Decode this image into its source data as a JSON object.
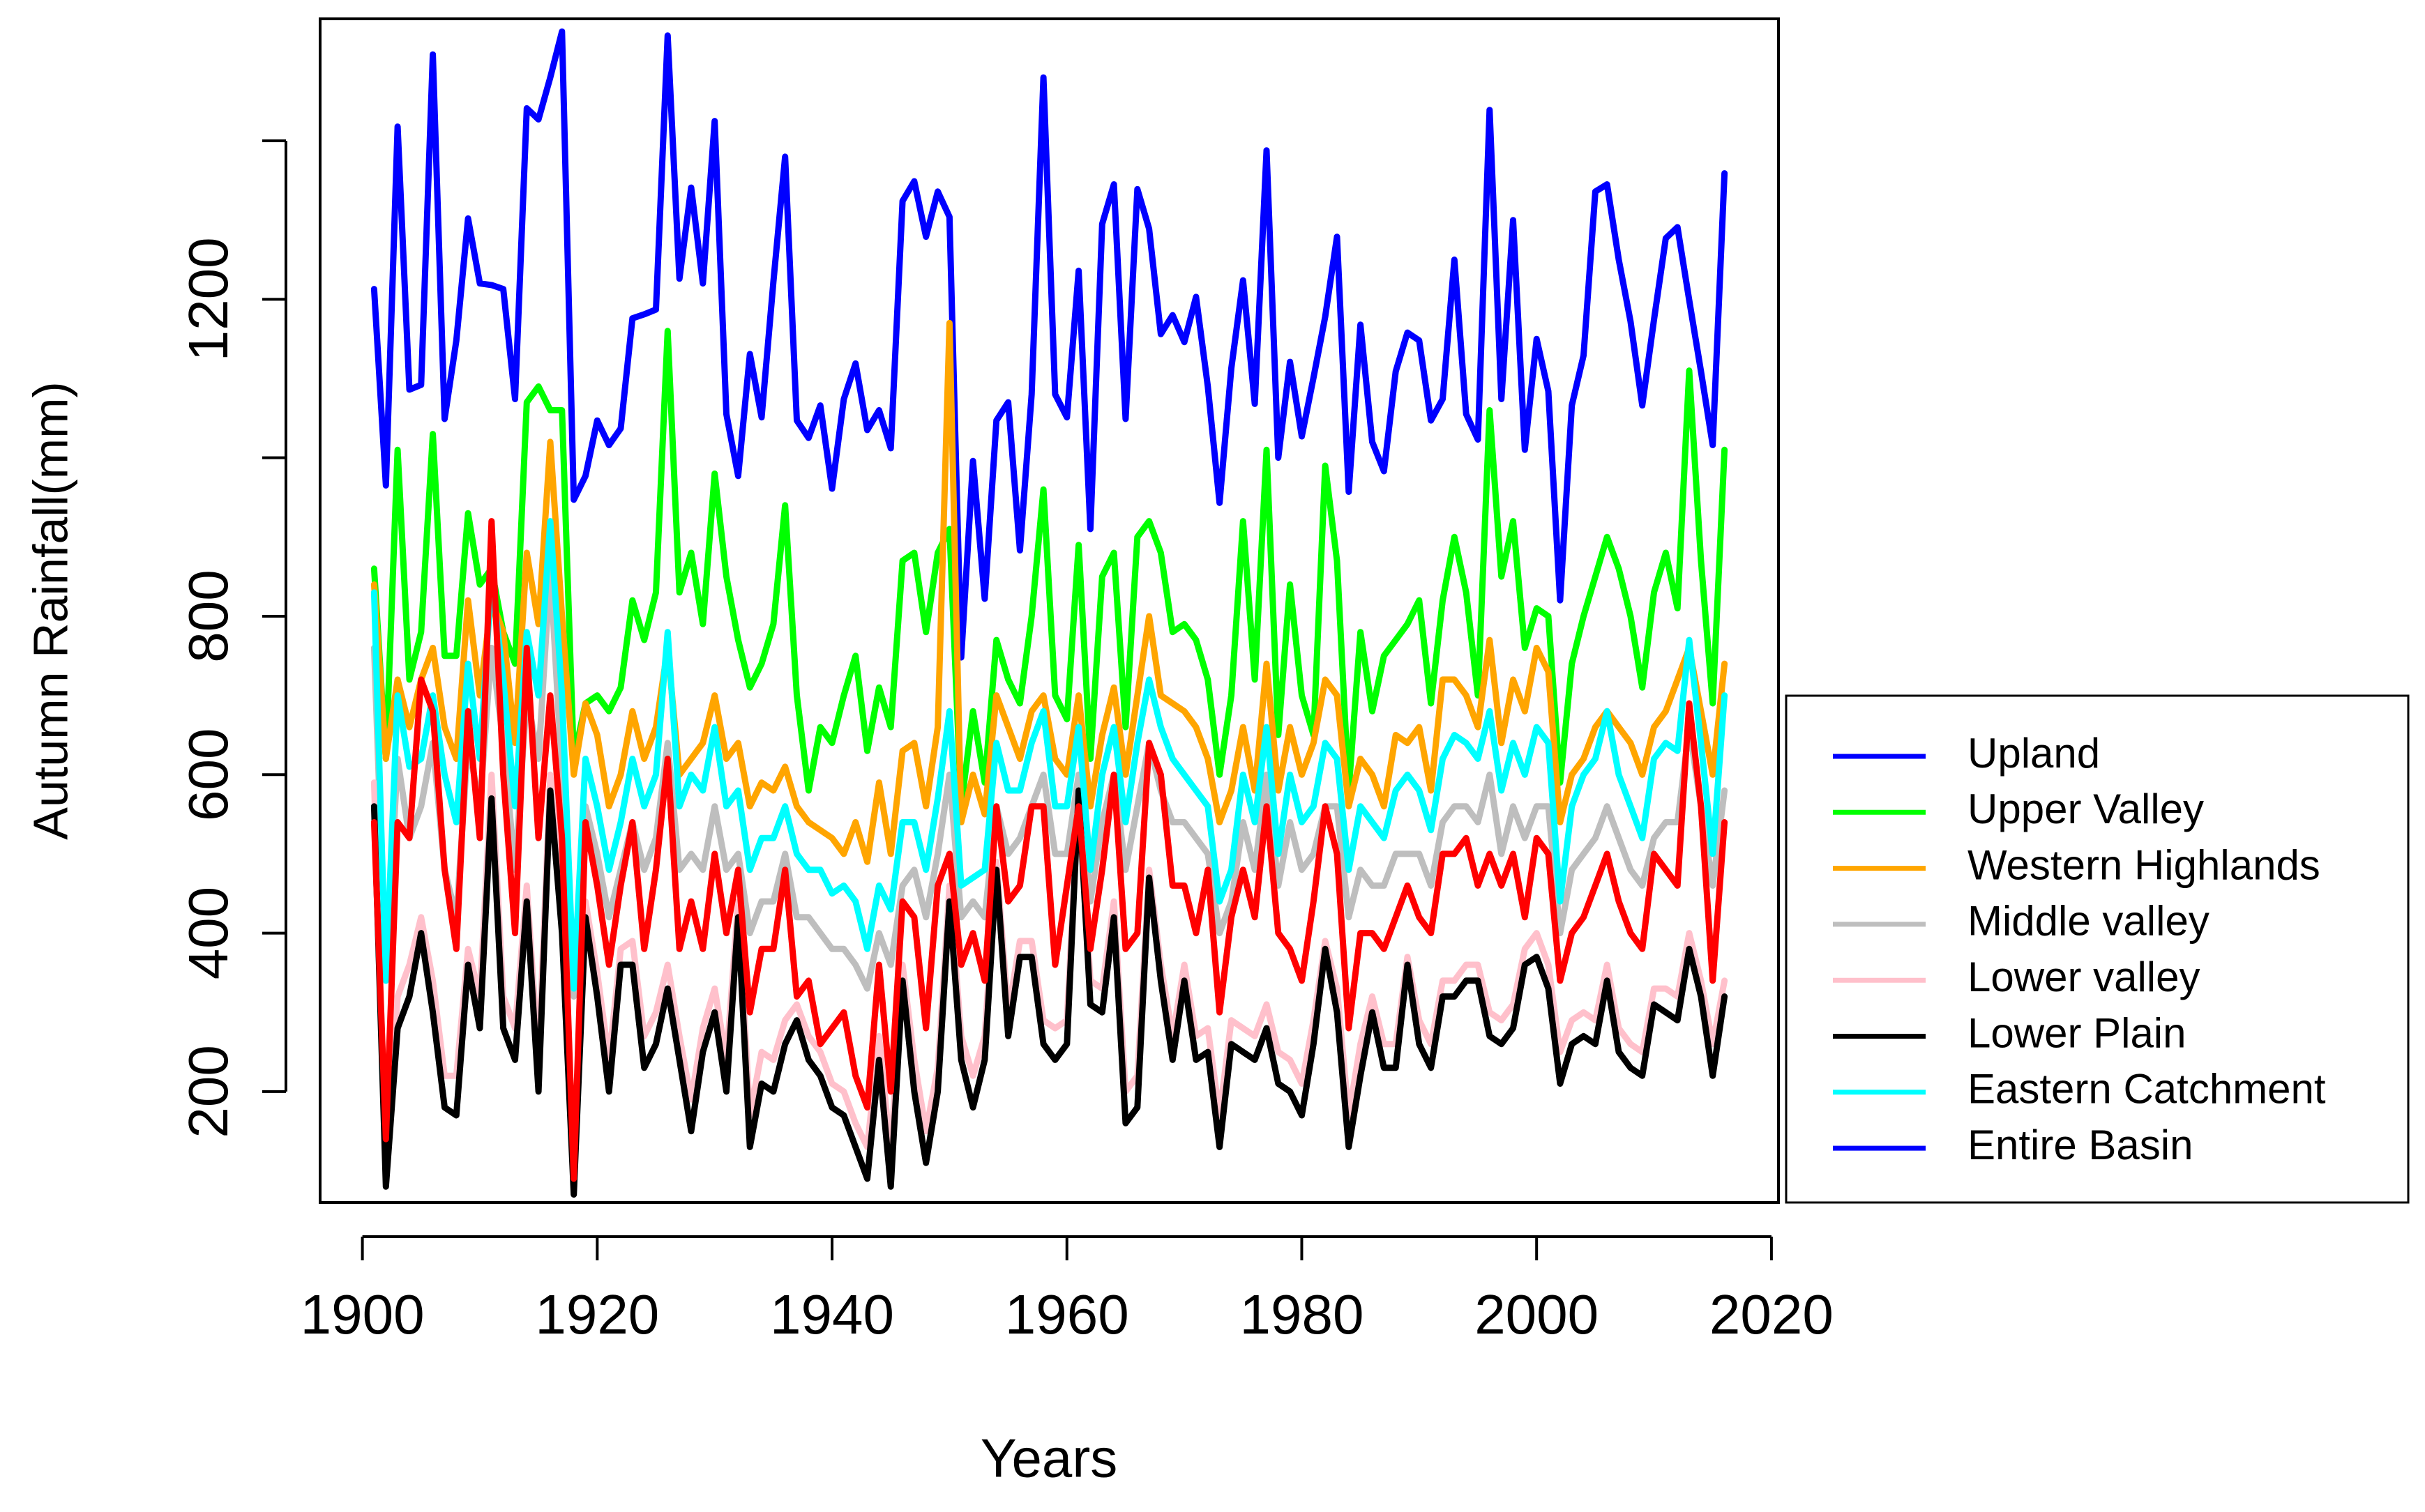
{
  "chart_data": {
    "type": "line",
    "xlabel": "Years",
    "ylabel": "Autumn Rainfall(mm)",
    "xlim": [
      1896.4,
      2020.6
    ],
    "ylim": [
      60,
      1554
    ],
    "xticks": [
      1900,
      1920,
      1940,
      1960,
      1980,
      2000,
      2020
    ],
    "yticks": [
      200,
      400,
      600,
      800,
      1200
    ],
    "yticks_unlabeled": [
      1000,
      1400
    ],
    "legend": "lower right outside",
    "x": [
      1901,
      1902,
      1903,
      1904,
      1905,
      1906,
      1907,
      1908,
      1909,
      1910,
      1911,
      1912,
      1913,
      1914,
      1915,
      1916,
      1917,
      1918,
      1919,
      1920,
      1921,
      1922,
      1923,
      1924,
      1925,
      1926,
      1927,
      1928,
      1929,
      1930,
      1931,
      1932,
      1933,
      1934,
      1935,
      1936,
      1937,
      1938,
      1939,
      1940,
      1941,
      1942,
      1943,
      1944,
      1945,
      1946,
      1947,
      1948,
      1949,
      1950,
      1951,
      1952,
      1953,
      1954,
      1955,
      1956,
      1957,
      1958,
      1959,
      1960,
      1961,
      1962,
      1963,
      1964,
      1965,
      1966,
      1967,
      1968,
      1969,
      1970,
      1971,
      1972,
      1973,
      1974,
      1975,
      1976,
      1977,
      1978,
      1979,
      1980,
      1981,
      1982,
      1983,
      1984,
      1985,
      1986,
      1987,
      1988,
      1989,
      1990,
      1991,
      1992,
      1993,
      1994,
      1995,
      1996,
      1997,
      1998,
      1999,
      2000,
      2001,
      2002,
      2003,
      2004,
      2005,
      2006,
      2007,
      2008,
      2009,
      2010,
      2011,
      2012,
      2013,
      2014,
      2015,
      2016
    ],
    "series": [
      {
        "name": "Upland",
        "color": "#0000ff",
        "values": [
          1213,
          965,
          1418,
          1086,
          1092,
          1509,
          1049,
          1148,
          1302,
          1220,
          1218,
          1213,
          1074,
          1441,
          1427,
          1480,
          1538,
          947,
          977,
          1047,
          1016,
          1037,
          1176,
          1181,
          1187,
          1533,
          1226,
          1341,
          1220,
          1425,
          1055,
          977,
          1131,
          1051,
          1222,
          1380,
          1047,
          1025,
          1066,
          961,
          1074,
          1119,
          1035,
          1060,
          1012,
          1324,
          1349,
          1279,
          1336,
          1304,
          748,
          996,
          822,
          1047,
          1070,
          883,
          1080,
          1480,
          1080,
          1051,
          1236,
          910,
          1295,
          1345,
          1049,
          1339,
          1289,
          1156,
          1180,
          1146,
          1203,
          1090,
          943,
          1113,
          1224,
          1068,
          1388,
          1000,
          1121,
          1027,
          1101,
          1178,
          1279,
          957,
          1168,
          1020,
          983,
          1109,
          1158,
          1148,
          1047,
          1074,
          1250,
          1055,
          1023,
          1439,
          1074,
          1300,
          1010,
          1150,
          1084,
          820,
          1066,
          1129,
          1336,
          1345,
          1250,
          1172,
          1066,
          1174,
          1277,
          1291,
          1199,
          1109,
          1016,
          1359
        ]
      },
      {
        "name": "Upper Valley",
        "color": "#00ff00",
        "values": [
          860,
          620,
          1010,
          720,
          780,
          1030,
          750,
          750,
          930,
          840,
          860,
          780,
          740,
          1070,
          1090,
          1060,
          1060,
          620,
          690,
          700,
          680,
          710,
          820,
          770,
          830,
          1160,
          830,
          880,
          790,
          980,
          850,
          770,
          710,
          740,
          790,
          940,
          700,
          580,
          660,
          640,
          700,
          750,
          630,
          710,
          660,
          870,
          880,
          780,
          880,
          910,
          560,
          680,
          590,
          770,
          720,
          690,
          800,
          960,
          700,
          670,
          890,
          620,
          850,
          880,
          660,
          900,
          920,
          880,
          780,
          790,
          770,
          720,
          600,
          700,
          920,
          720,
          1010,
          650,
          840,
          700,
          650,
          990,
          870,
          580,
          780,
          680,
          750,
          770,
          790,
          820,
          690,
          820,
          900,
          830,
          700,
          1060,
          850,
          920,
          760,
          810,
          800,
          590,
          740,
          800,
          850,
          900,
          860,
          800,
          710,
          830,
          880,
          810,
          1110,
          870,
          690,
          1010
        ]
      },
      {
        "name": "Western Highlands",
        "color": "#ffa500",
        "values": [
          840,
          620,
          720,
          660,
          720,
          760,
          660,
          620,
          820,
          700,
          820,
          780,
          640,
          880,
          790,
          1020,
          800,
          600,
          690,
          650,
          560,
          600,
          680,
          620,
          660,
          760,
          600,
          620,
          640,
          700,
          620,
          640,
          560,
          590,
          580,
          610,
          560,
          540,
          530,
          520,
          500,
          540,
          490,
          590,
          500,
          630,
          640,
          560,
          660,
          1170,
          540,
          600,
          550,
          700,
          660,
          620,
          680,
          700,
          620,
          600,
          700,
          560,
          650,
          710,
          600,
          700,
          800,
          700,
          690,
          680,
          660,
          620,
          540,
          580,
          660,
          580,
          740,
          580,
          660,
          600,
          640,
          720,
          700,
          560,
          620,
          600,
          560,
          650,
          640,
          660,
          580,
          720,
          720,
          700,
          660,
          770,
          640,
          720,
          680,
          760,
          730,
          540,
          600,
          620,
          660,
          680,
          660,
          640,
          600,
          660,
          680,
          720,
          760,
          680,
          600,
          740
        ]
      },
      {
        "name": "Middle valley",
        "color": "#bebebe",
        "values": [
          760,
          340,
          620,
          520,
          560,
          640,
          480,
          420,
          640,
          560,
          760,
          640,
          480,
          700,
          620,
          860,
          600,
          320,
          560,
          500,
          420,
          480,
          540,
          480,
          520,
          640,
          480,
          500,
          480,
          560,
          480,
          500,
          400,
          440,
          440,
          500,
          420,
          420,
          400,
          380,
          380,
          360,
          330,
          400,
          360,
          460,
          480,
          420,
          500,
          600,
          420,
          440,
          420,
          560,
          500,
          520,
          560,
          600,
          500,
          500,
          600,
          440,
          540,
          600,
          480,
          560,
          640,
          580,
          540,
          540,
          520,
          500,
          400,
          440,
          540,
          480,
          600,
          460,
          540,
          480,
          500,
          560,
          560,
          420,
          480,
          460,
          460,
          500,
          500,
          500,
          460,
          540,
          560,
          560,
          540,
          600,
          500,
          560,
          520,
          560,
          560,
          400,
          480,
          500,
          520,
          560,
          520,
          480,
          460,
          520,
          540,
          540,
          660,
          560,
          460,
          580
        ]
      },
      {
        "name": "Lower valley",
        "color": "#ffc0cb",
        "values": [
          590,
          110,
          320,
          360,
          420,
          340,
          220,
          220,
          380,
          320,
          600,
          320,
          280,
          460,
          240,
          600,
          430,
          90,
          440,
          350,
          240,
          380,
          390,
          270,
          300,
          360,
          270,
          190,
          280,
          330,
          240,
          440,
          170,
          250,
          240,
          290,
          310,
          270,
          250,
          210,
          200,
          160,
          130,
          270,
          120,
          360,
          240,
          150,
          230,
          460,
          270,
          220,
          270,
          490,
          300,
          390,
          390,
          290,
          280,
          290,
          580,
          340,
          330,
          440,
          200,
          220,
          480,
          360,
          270,
          360,
          270,
          280,
          170,
          290,
          280,
          270,
          310,
          250,
          240,
          210,
          290,
          390,
          330,
          170,
          260,
          320,
          260,
          260,
          370,
          290,
          260,
          340,
          340,
          360,
          360,
          300,
          290,
          310,
          380,
          400,
          360,
          250,
          290,
          300,
          290,
          360,
          280,
          260,
          250,
          330,
          330,
          320,
          400,
          340,
          260,
          340
        ]
      },
      {
        "name": "Lower Plain",
        "color": "#000000",
        "values": [
          560,
          80,
          280,
          320,
          400,
          300,
          180,
          170,
          360,
          280,
          570,
          280,
          240,
          440,
          200,
          580,
          400,
          70,
          420,
          320,
          200,
          360,
          360,
          230,
          260,
          330,
          240,
          150,
          250,
          300,
          200,
          420,
          130,
          210,
          200,
          260,
          290,
          240,
          220,
          180,
          170,
          130,
          90,
          240,
          80,
          340,
          200,
          110,
          200,
          440,
          240,
          180,
          240,
          480,
          270,
          370,
          370,
          260,
          240,
          260,
          580,
          310,
          300,
          420,
          160,
          180,
          470,
          340,
          240,
          340,
          240,
          250,
          130,
          260,
          250,
          240,
          280,
          210,
          200,
          170,
          260,
          380,
          300,
          130,
          220,
          300,
          230,
          230,
          360,
          260,
          230,
          320,
          320,
          340,
          340,
          270,
          260,
          280,
          360,
          370,
          330,
          210,
          260,
          270,
          260,
          340,
          250,
          230,
          220,
          310,
          300,
          290,
          380,
          320,
          220,
          320
        ]
      },
      {
        "name": "Eastern Catchment",
        "color": "#00ffff",
        "values": [
          830,
          340,
          700,
          610,
          620,
          700,
          600,
          540,
          740,
          620,
          850,
          720,
          560,
          780,
          700,
          920,
          700,
          330,
          620,
          560,
          480,
          540,
          620,
          560,
          600,
          780,
          560,
          600,
          580,
          660,
          560,
          580,
          480,
          520,
          520,
          560,
          500,
          480,
          480,
          450,
          460,
          440,
          380,
          460,
          430,
          540,
          540,
          480,
          570,
          680,
          460,
          470,
          480,
          640,
          580,
          580,
          640,
          680,
          560,
          560,
          660,
          480,
          600,
          660,
          540,
          640,
          720,
          660,
          620,
          600,
          580,
          560,
          440,
          480,
          600,
          540,
          660,
          500,
          600,
          540,
          560,
          640,
          620,
          480,
          560,
          540,
          520,
          580,
          600,
          580,
          530,
          620,
          650,
          640,
          620,
          680,
          580,
          640,
          600,
          660,
          640,
          440,
          560,
          600,
          620,
          680,
          600,
          560,
          520,
          620,
          640,
          630,
          770,
          640,
          500,
          700
        ]
      },
      {
        "name": "Entire Basin",
        "color": "#ff0000",
        "legend_color": "#0000ff",
        "values": [
          540,
          140,
          540,
          520,
          720,
          680,
          480,
          380,
          680,
          520,
          920,
          600,
          400,
          760,
          520,
          700,
          520,
          90,
          540,
          460,
          360,
          460,
          540,
          380,
          480,
          620,
          380,
          440,
          380,
          500,
          400,
          480,
          300,
          380,
          380,
          480,
          320,
          340,
          260,
          280,
          300,
          220,
          180,
          360,
          200,
          440,
          420,
          280,
          460,
          500,
          360,
          400,
          340,
          560,
          440,
          460,
          560,
          560,
          360,
          460,
          560,
          380,
          480,
          600,
          380,
          400,
          640,
          600,
          460,
          460,
          400,
          480,
          300,
          420,
          480,
          420,
          560,
          400,
          380,
          340,
          440,
          560,
          500,
          280,
          400,
          400,
          380,
          420,
          460,
          420,
          400,
          500,
          500,
          520,
          460,
          500,
          460,
          500,
          420,
          520,
          500,
          340,
          400,
          420,
          460,
          500,
          440,
          400,
          380,
          500,
          480,
          460,
          690,
          560,
          340,
          540
        ]
      }
    ]
  }
}
